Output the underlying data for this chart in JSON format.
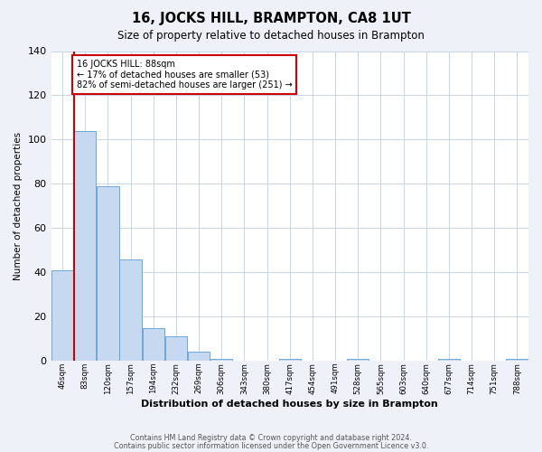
{
  "title": "16, JOCKS HILL, BRAMPTON, CA8 1UT",
  "subtitle": "Size of property relative to detached houses in Brampton",
  "xlabel": "Distribution of detached houses by size in Brampton",
  "ylabel": "Number of detached properties",
  "bin_labels": [
    "46sqm",
    "83sqm",
    "120sqm",
    "157sqm",
    "194sqm",
    "232sqm",
    "269sqm",
    "306sqm",
    "343sqm",
    "380sqm",
    "417sqm",
    "454sqm",
    "491sqm",
    "528sqm",
    "565sqm",
    "603sqm",
    "640sqm",
    "677sqm",
    "714sqm",
    "751sqm",
    "788sqm"
  ],
  "bar_heights": [
    41,
    104,
    79,
    46,
    15,
    11,
    4,
    1,
    0,
    0,
    1,
    0,
    0,
    1,
    0,
    0,
    0,
    1,
    0,
    0,
    1
  ],
  "bar_color": "#c6d9f0",
  "bar_edge_color": "#5b9bd5",
  "marker_line_color": "#cc0000",
  "annotation_title": "16 JOCKS HILL: 88sqm",
  "annotation_line1": "← 17% of detached houses are smaller (53)",
  "annotation_line2": "82% of semi-detached houses are larger (251) →",
  "annotation_box_edge": "#cc0000",
  "ylim": [
    0,
    140
  ],
  "yticks": [
    0,
    20,
    40,
    60,
    80,
    100,
    120,
    140
  ],
  "footnote1": "Contains HM Land Registry data © Crown copyright and database right 2024.",
  "footnote2": "Contains public sector information licensed under the Open Government Licence v3.0.",
  "bg_color": "#eef2f8",
  "plot_bg_color": "#ffffff",
  "grid_color": "#c8d4e8"
}
